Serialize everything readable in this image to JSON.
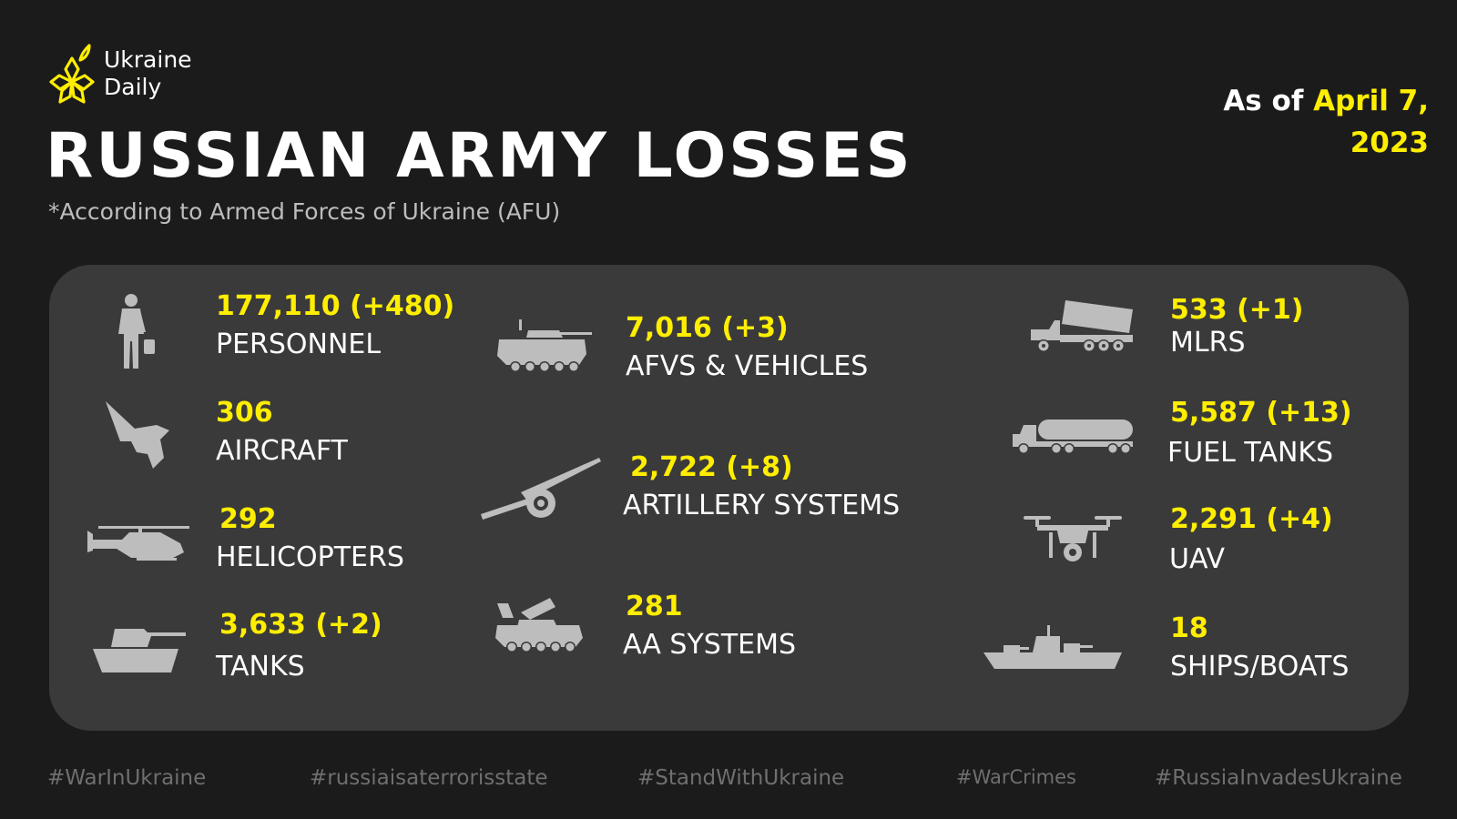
{
  "brand": {
    "line1": "Ukraine",
    "line2": "Daily",
    "accent": "#ffee00"
  },
  "title": "RUSSIAN ARMY LOSSES",
  "subtitle": "*According to Armed Forces of Ukraine (AFU)",
  "as_of": {
    "prefix": "As of ",
    "date_line1": "April 7,",
    "date_line2": "2023"
  },
  "stats": [
    {
      "icon": "soldier-icon",
      "value": "177,110 (+480)",
      "label": "PERSONNEL"
    },
    {
      "icon": "fighter-jet-icon",
      "value": "306",
      "label": "AIRCRAFT"
    },
    {
      "icon": "helicopter-icon",
      "value": "292",
      "label": "HELICOPTERS"
    },
    {
      "icon": "tank-icon",
      "value": "3,633 (+2)",
      "label": "TANKS"
    },
    {
      "icon": "armored-vehicle-icon",
      "value": "7,016 (+3)",
      "label": "AFVS & VEHICLES"
    },
    {
      "icon": "artillery-icon",
      "value": "2,722 (+8)",
      "label": "ARTILLERY SYSTEMS"
    },
    {
      "icon": "aa-system-icon",
      "value": "281",
      "label": "AA SYSTEMS"
    },
    {
      "icon": "mlrs-icon",
      "value": "533 (+1)",
      "label": "MLRS"
    },
    {
      "icon": "fuel-truck-icon",
      "value": "5,587 (+13)",
      "label": "FUEL TANKS"
    },
    {
      "icon": "drone-icon",
      "value": "2,291 (+4)",
      "label": "UAV"
    },
    {
      "icon": "warship-icon",
      "value": "18",
      "label": "SHIPS/BOATS"
    }
  ],
  "hashtags": [
    "#WarInUkraine",
    "#russiaisaterrorisstate",
    "#StandWithUkraine",
    "#WarCrimes",
    "#RussiaInvadesUkraine"
  ]
}
